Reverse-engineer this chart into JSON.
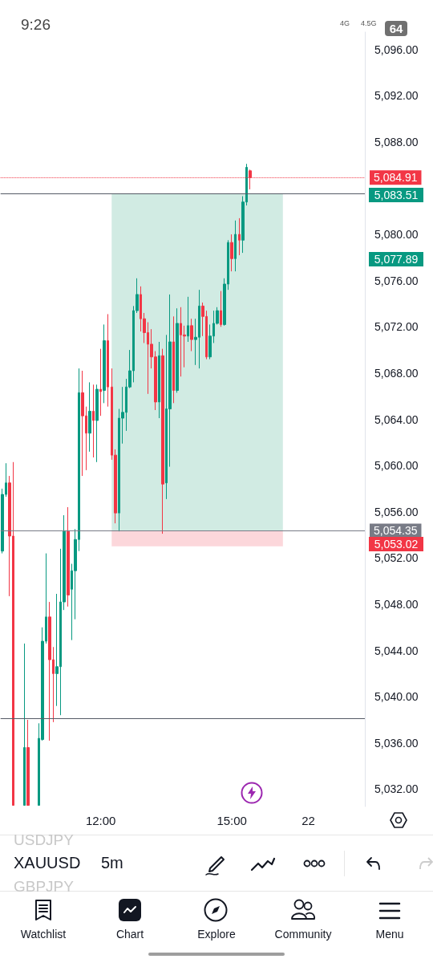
{
  "chart_data": {
    "type": "candlestick",
    "categories": [
      null,
      null,
      null,
      null,
      null,
      null,
      null,
      null,
      null,
      null,
      null,
      null,
      null,
      null,
      null,
      null,
      null,
      null,
      null,
      null,
      null,
      null,
      null,
      null,
      null,
      null,
      null,
      "12:00",
      null,
      null,
      null,
      null,
      null,
      null,
      null,
      null,
      null,
      null,
      null,
      null,
      null,
      null,
      null,
      null,
      null,
      null,
      null,
      null,
      null,
      null,
      null,
      null,
      null,
      null,
      null,
      null,
      null,
      null,
      null,
      null,
      null,
      null,
      null,
      "15:00",
      null,
      null,
      null,
      null,
      null,
      null,
      null,
      null,
      null,
      null,
      null,
      null,
      null,
      null,
      null,
      null,
      null,
      null,
      null,
      null,
      "22",
      null,
      null,
      null,
      null,
      null,
      null,
      null,
      null,
      null,
      null,
      null,
      null,
      null,
      null,
      null
    ],
    "ohlc": [
      [
        5052.6,
        5058.0,
        5052.4,
        5057.5
      ],
      [
        5057.5,
        5060.2,
        5057.3,
        5058.5
      ],
      [
        5058.5,
        5059.1,
        5048.7,
        5053.9
      ],
      [
        5053.9,
        5060.3,
        5030.6,
        5030.6
      ],
      null,
      null,
      [
        5030.6,
        5044.6,
        5030.6,
        5035.6
      ],
      [
        5035.6,
        5038.0,
        5030.6,
        5030.6
      ],
      null,
      null,
      [
        5030.6,
        5037.7,
        5030.6,
        5036.4
      ],
      [
        5036.3,
        5046.0,
        5036.2,
        5044.8
      ],
      [
        5044.8,
        5052.4,
        5044.6,
        5046.9
      ],
      [
        5046.9,
        5048.2,
        5036.2,
        5043.2
      ],
      [
        5043.2,
        5044.3,
        5037.8,
        5042.0
      ],
      [
        5042.0,
        5048.9,
        5039.2,
        5042.6
      ],
      [
        5042.6,
        5052.8,
        5038.4,
        5048.2
      ],
      [
        5048.2,
        5055.7,
        5047.5,
        5054.3
      ],
      [
        5054.3,
        5056.4,
        5047.8,
        5048.8
      ],
      [
        5049.3,
        5051.5,
        5044.9,
        5050.9
      ],
      [
        5050.9,
        5054.5,
        5046.7,
        5053.6
      ],
      [
        5053.6,
        5068.4,
        5052.6,
        5066.3
      ],
      [
        5066.3,
        5068.2,
        5059.1,
        5064.3
      ],
      [
        5064.3,
        5065.1,
        5059.6,
        5062.8
      ],
      [
        5062.8,
        5067.2,
        5061.2,
        5064.7
      ],
      [
        5064.7,
        5067.0,
        5060.7,
        5063.9
      ],
      [
        5063.9,
        5067.0,
        5060.3,
        5066.6
      ],
      [
        5066.6,
        5070.1,
        5064.3,
        5066.4
      ],
      [
        5066.5,
        5072.2,
        5065.4,
        5070.8
      ],
      [
        5070.8,
        5073.1,
        5065.1,
        5066.8
      ],
      [
        5066.8,
        5068.4,
        5060.5,
        5060.9
      ],
      [
        5060.9,
        5061.4,
        5055.0,
        5055.9
      ],
      [
        5055.9,
        5064.9,
        5054.3,
        5064.1
      ],
      [
        5064.1,
        5066.8,
        5061.9,
        5064.6
      ],
      [
        5064.6,
        5067.5,
        5063.0,
        5066.8
      ],
      [
        5066.8,
        5070.0,
        5066.7,
        5068.2
      ],
      [
        5068.2,
        5073.8,
        5067.2,
        5073.4
      ],
      [
        5073.4,
        5076.2,
        5073.2,
        5074.8
      ],
      [
        5074.8,
        5075.5,
        5071.6,
        5072.7
      ],
      [
        5072.7,
        5073.2,
        5070.6,
        5071.5
      ],
      [
        5071.5,
        5072.4,
        5066.2,
        5070.5
      ],
      [
        5070.5,
        5071.8,
        5068.4,
        5069.4
      ],
      [
        5069.4,
        5069.9,
        5064.8,
        5065.5
      ],
      [
        5065.5,
        5070.7,
        5064.1,
        5069.5
      ],
      [
        5069.5,
        5070.1,
        5054.1,
        5058.4
      ],
      [
        5058.5,
        5071.3,
        5057.1,
        5064.9
      ],
      [
        5064.9,
        5074.8,
        5059.9,
        5070.7
      ],
      [
        5070.7,
        5072.9,
        5065.4,
        5066.5
      ],
      [
        5066.5,
        5073.6,
        5066.3,
        5072.3
      ],
      [
        5072.3,
        5073.7,
        5067.7,
        5071.3
      ],
      [
        5071.3,
        5072.1,
        5068.5,
        5071.2
      ],
      [
        5071.2,
        5074.6,
        5070.7,
        5072.1
      ],
      [
        5072.1,
        5072.7,
        5069.9,
        5070.9
      ],
      [
        5070.9,
        5072.7,
        5068.7,
        5071.1
      ],
      [
        5071.1,
        5075.2,
        5068.4,
        5073.8
      ],
      [
        5073.8,
        5074.1,
        5071.2,
        5072.9
      ],
      [
        5072.9,
        5073.4,
        5069.2,
        5069.4
      ],
      [
        5069.4,
        5072.2,
        5069.2,
        5071.2
      ],
      [
        5071.2,
        5073.4,
        5070.6,
        5072.3
      ],
      [
        5072.3,
        5073.7,
        5072.2,
        5073.4
      ],
      [
        5073.4,
        5075.1,
        5072.0,
        5072.2
      ],
      [
        5072.2,
        5076.2,
        5072.1,
        5075.7
      ],
      [
        5075.7,
        5079.5,
        5075.2,
        5079.3
      ],
      [
        5079.3,
        5080.0,
        5076.8,
        5077.9
      ],
      [
        5077.9,
        5081.2,
        5076.8,
        5080.0
      ],
      [
        5080.0,
        5081.4,
        5078.2,
        5079.5
      ],
      [
        5079.5,
        5083.3,
        5078.4,
        5082.8
      ],
      [
        5082.8,
        5086.1,
        5082.5,
        5085.8
      ],
      [
        5085.5,
        5085.6,
        5083.9,
        5084.91
      ],
      null,
      null,
      null,
      null,
      null,
      null,
      null,
      null,
      null,
      null,
      null,
      null,
      null,
      null,
      null,
      null,
      null,
      null,
      null,
      null,
      null,
      null,
      null,
      null,
      null,
      null,
      null,
      null,
      null,
      null,
      null
    ],
    "colors": [
      "#089981",
      "#089981",
      "#f23645",
      "#f23645",
      null,
      null,
      "#089981",
      "#f23645",
      null,
      null,
      "#089981",
      "#089981",
      "#089981",
      "#f23645",
      "#f23645",
      "#089981",
      "#089981",
      "#089981",
      "#f23645",
      "#089981",
      "#089981",
      "#089981",
      "#f23645",
      "#f23645",
      "#089981",
      "#f23645",
      "#089981",
      "#f23645",
      "#089981",
      "#f23645",
      "#f23645",
      "#f23645",
      "#089981",
      "#089981",
      "#089981",
      "#089981",
      "#089981",
      "#089981",
      "#f23645",
      "#f23645",
      "#f23645",
      "#f23645",
      "#f23645",
      "#089981",
      "#f23645",
      "#089981",
      "#089981",
      "#f23645",
      "#089981",
      "#f23645",
      "#f23645",
      "#089981",
      "#f23645",
      "#089981",
      "#089981",
      "#f23645",
      "#f23645",
      "#089981",
      "#089981",
      "#089981",
      "#f23645",
      "#089981",
      "#089981",
      "#f23645",
      "#089981",
      "#f23645",
      "#089981",
      "#089981",
      "#f23645",
      null,
      null,
      null,
      null,
      null,
      null,
      null,
      null,
      null,
      null,
      null,
      null,
      null,
      null,
      null,
      null,
      null,
      null,
      null,
      null,
      null,
      null,
      null,
      null,
      null,
      null,
      null,
      null,
      null,
      null,
      null
    ],
    "ylim": [
      5030.5,
      5097.5
    ],
    "yticks": [
      {
        "value": 5032,
        "label": "5,032.00"
      },
      {
        "value": 5036,
        "label": "5,036.00"
      },
      {
        "value": 5040,
        "label": "5,040.00"
      },
      {
        "value": 5044,
        "label": "5,044.00"
      },
      {
        "value": 5048,
        "label": "5,048.00"
      },
      {
        "value": 5052,
        "label": "5,052.00"
      },
      {
        "value": 5056,
        "label": "5,056.00"
      },
      {
        "value": 5060,
        "label": "5,060.00"
      },
      {
        "value": 5064,
        "label": "5,064.00"
      },
      {
        "value": 5068,
        "label": "5,068.00"
      },
      {
        "value": 5072,
        "label": "5,072.00"
      },
      {
        "value": 5076,
        "label": "5,076.00"
      },
      {
        "value": 5080,
        "label": "5,080.00"
      },
      {
        "value": 5088,
        "label": "5,088.00"
      },
      {
        "value": 5092,
        "label": "5,092.00"
      },
      {
        "value": 5096,
        "label": "5,096.00"
      }
    ],
    "ref_lines": [
      {
        "axis": "y",
        "value": 5084.91,
        "label": "5,084.91",
        "color": "#f23645",
        "line_style": "dotted"
      },
      {
        "axis": "y",
        "value": 5083.51,
        "color": "#555b66",
        "line_style": "solid"
      },
      {
        "axis": "y",
        "value": 5054.35,
        "label": "5,054.35",
        "color": "#787b86",
        "line_style": "solid"
      },
      {
        "axis": "y",
        "value": 5038.1,
        "color": "#555b66",
        "line_style": "solid"
      }
    ],
    "bands": [
      {
        "axis": "y",
        "from": 5054.35,
        "to": 5083.51,
        "color": "#d1ebe3"
      },
      {
        "axis": "y",
        "from": 5053.02,
        "to": 5054.35,
        "color": "#fcd7db"
      }
    ],
    "grid": false,
    "annotations": [
      "5,083.51",
      "5,077.89",
      "5,053.02",
      "9:26",
      "4G",
      "4.5G",
      "64",
      "USDJPY",
      "XAUUSD",
      "5m",
      "GBPJPY",
      "Watchlist",
      "Chart",
      "Explore",
      "Community",
      "Menu"
    ]
  }
}
